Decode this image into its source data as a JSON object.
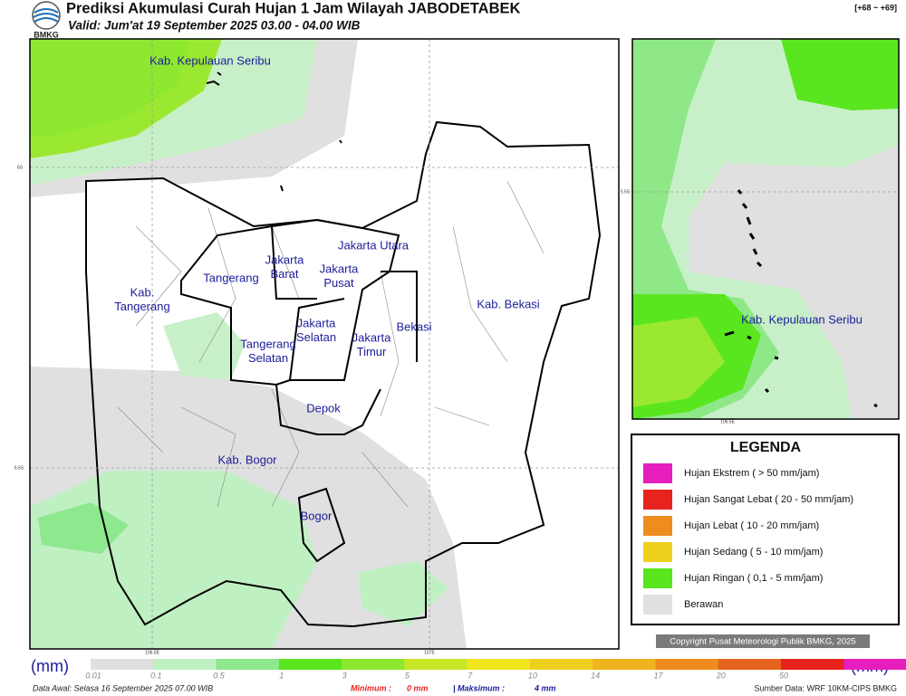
{
  "header": {
    "title": "Prediksi Akumulasi Curah Hujan 1 Jam Wilayah JABODETABEK",
    "subtitle": "Valid: Jum'at 19 September 2025 03.00 - 04.00 WIB",
    "run_offset": "[+68 ~ +69]",
    "logo": "BMKG"
  },
  "map": {
    "labels": [
      {
        "lines": [
          "Kab. Kepulauan Seribu"
        ]
      },
      {
        "lines": [
          "Jakarta Utara"
        ]
      },
      {
        "lines": [
          "Jakarta",
          "Barat"
        ]
      },
      {
        "lines": [
          "Jakarta",
          "Pusat"
        ]
      },
      {
        "lines": [
          "Tangerang"
        ]
      },
      {
        "lines": [
          "Kab.",
          "Tangerang"
        ]
      },
      {
        "lines": [
          "Bekasi"
        ]
      },
      {
        "lines": [
          "Kab. Bekasi"
        ]
      },
      {
        "lines": [
          "Jakarta",
          "Selatan"
        ]
      },
      {
        "lines": [
          "Jakarta",
          "Timur"
        ]
      },
      {
        "lines": [
          "Tangerang",
          "Selatan"
        ]
      },
      {
        "lines": [
          "Depok"
        ]
      },
      {
        "lines": [
          "Kab. Bogor"
        ]
      },
      {
        "lines": [
          "Bogor"
        ]
      }
    ],
    "grid_labels": [
      "6S",
      "6.5S",
      "106.5E",
      "107E"
    ]
  },
  "inset": {
    "labels": [
      "Kab. Kepulauan Seribu"
    ],
    "grid_labels": [
      "5.5S",
      "106.5E"
    ]
  },
  "legend": {
    "title": "LEGENDA",
    "items": [
      {
        "label": "Hujan Ekstrem ( > 50 mm/jam)",
        "color": "#e61ebe"
      },
      {
        "label": "Hujan Sangat Lebat ( 20 - 50 mm/jam)",
        "color": "#e8231e"
      },
      {
        "label": "Hujan Lebat ( 10 - 20 mm/jam)",
        "color": "#ee8c1e"
      },
      {
        "label": "Hujan Sedang ( 5 - 10 mm/jam)",
        "color": "#f0d01e"
      },
      {
        "label": "Hujan Ringan ( 0,1 - 5 mm/jam)",
        "color": "#5ae61e"
      },
      {
        "label": "Berawan",
        "color": "#e0e0e0"
      }
    ]
  },
  "copyright": "Copyright Pusat Meteorologi Publik BMKG, 2025",
  "colorbar": {
    "unit": "(mm)",
    "ticks": [
      0.01,
      0.1,
      0.5,
      1,
      3,
      5,
      7,
      10,
      14,
      17,
      20,
      50
    ],
    "colors": [
      "#e0e0e0",
      "#bff0c2",
      "#8ee88e",
      "#5ae61e",
      "#8ee830",
      "#c8e628",
      "#f0e61e",
      "#f0d01e",
      "#f0b41e",
      "#ee8c1e",
      "#e8641e",
      "#e8231e",
      "#e61ebe"
    ]
  },
  "footer": {
    "data_start": "Data Awal: Selasa 16 September 2025 07.00 WIB",
    "min_label": "Minimum :",
    "min_value": "0 mm",
    "max_label": "| Maksimum :",
    "max_value": "4 mm",
    "source": "Sumber Data: WRF 10KM-CIPS BMKG"
  }
}
